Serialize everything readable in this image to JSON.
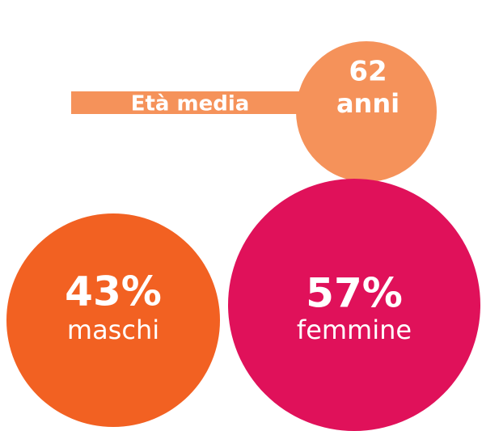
{
  "age": {
    "label": "Età media",
    "value": "62",
    "unit": "anni"
  },
  "male": {
    "value": "43%",
    "label": "maschi"
  },
  "female": {
    "value": "57%",
    "label": "femmine"
  }
}
